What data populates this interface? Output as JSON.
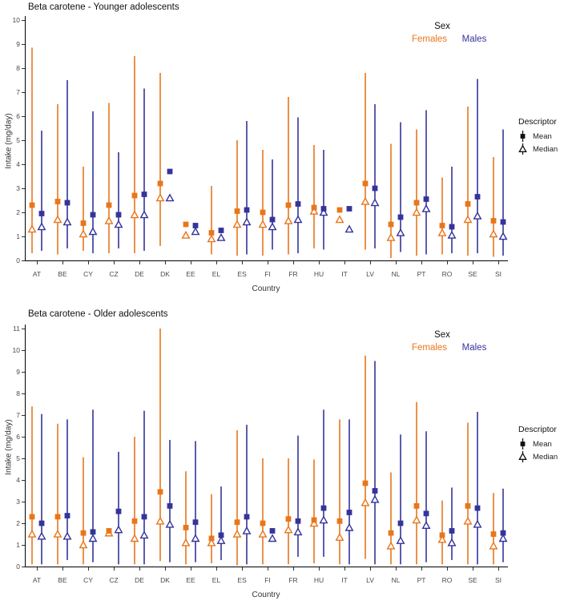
{
  "colors": {
    "females": "#E8761B",
    "males": "#34349A",
    "axis": "#000000",
    "tick_label": "#4a4a4a"
  },
  "sex_legend": {
    "title": "Sex",
    "items": [
      {
        "label": "Females",
        "key": "females"
      },
      {
        "label": "Males",
        "key": "males"
      }
    ]
  },
  "descriptor_legend": {
    "title": "Descriptor",
    "items": [
      {
        "label": "Mean",
        "shape": "filled-square"
      },
      {
        "label": "Median",
        "shape": "open-triangle"
      }
    ]
  },
  "chart_data": [
    {
      "type": "pointrange",
      "title": "Beta carotene - Younger adolescents",
      "xlabel": "Country",
      "ylabel": "Intake (mg/day)",
      "ylim": [
        0,
        10
      ],
      "yticks": [
        0,
        1,
        2,
        3,
        4,
        5,
        6,
        7,
        8,
        9,
        10
      ],
      "grid": false,
      "legend_position": "sex: top-right inside; descriptor: right margin",
      "categories": [
        "AT",
        "BE",
        "CY",
        "CZ",
        "DE",
        "DK",
        "EE",
        "EL",
        "ES",
        "FI",
        "FR",
        "HU",
        "IT",
        "LV",
        "NL",
        "PT",
        "RO",
        "SE",
        "SI"
      ],
      "series": [
        {
          "name": "Females",
          "mins": [
            0.3,
            0.25,
            0.4,
            0.3,
            0.3,
            0.6,
            null,
            0.25,
            0.2,
            0.2,
            0.25,
            0.5,
            null,
            0.45,
            0.1,
            0.2,
            0.25,
            0.2,
            0.15
          ],
          "maxs": [
            8.85,
            6.5,
            3.9,
            6.55,
            8.5,
            7.8,
            null,
            3.1,
            5.0,
            4.6,
            6.8,
            4.8,
            null,
            7.8,
            4.85,
            5.45,
            3.45,
            6.4,
            4.3
          ],
          "means": [
            2.3,
            2.45,
            1.55,
            2.3,
            2.7,
            3.2,
            1.5,
            1.15,
            2.05,
            2.0,
            2.3,
            2.2,
            2.1,
            3.2,
            1.5,
            2.4,
            1.45,
            2.35,
            1.65
          ],
          "medians": [
            1.3,
            1.7,
            1.1,
            1.65,
            1.9,
            2.6,
            1.05,
            0.9,
            1.5,
            1.5,
            1.65,
            2.05,
            1.7,
            2.45,
            0.95,
            2.0,
            1.15,
            1.7,
            1.1
          ]
        },
        {
          "name": "Males",
          "mins": [
            0.4,
            0.5,
            0.3,
            0.5,
            0.4,
            null,
            null,
            null,
            0.25,
            0.45,
            0.3,
            0.45,
            null,
            0.5,
            0.35,
            0.25,
            0.3,
            0.3,
            0.2
          ],
          "maxs": [
            5.4,
            7.5,
            6.2,
            4.5,
            7.15,
            null,
            null,
            null,
            5.8,
            4.2,
            5.95,
            4.6,
            null,
            6.5,
            5.75,
            6.25,
            3.9,
            7.55,
            5.45
          ],
          "means": [
            1.95,
            2.4,
            1.9,
            1.9,
            2.75,
            3.7,
            1.45,
            1.25,
            2.1,
            1.7,
            2.35,
            2.15,
            2.15,
            3.0,
            1.8,
            2.55,
            1.4,
            2.65,
            1.6
          ],
          "medians": [
            1.4,
            1.6,
            1.2,
            1.5,
            1.9,
            2.6,
            1.2,
            0.95,
            1.6,
            1.4,
            1.7,
            2.0,
            1.3,
            2.4,
            1.15,
            2.15,
            1.05,
            1.85,
            1.0
          ]
        }
      ]
    },
    {
      "type": "pointrange",
      "title": "Beta carotene - Older adolescents",
      "xlabel": "Country",
      "ylabel": "Intake (mg/day)",
      "ylim": [
        0,
        11
      ],
      "yticks": [
        0,
        1,
        2,
        3,
        4,
        5,
        6,
        7,
        8,
        9,
        10,
        11
      ],
      "grid": false,
      "legend_position": "sex: top-right inside; descriptor: right margin",
      "categories": [
        "AT",
        "BE",
        "CY",
        "CZ",
        "DE",
        "DK",
        "EE",
        "EL",
        "ES",
        "FI",
        "FR",
        "HU",
        "IT",
        "LV",
        "NL",
        "PT",
        "RO",
        "SE",
        "SI"
      ],
      "series": [
        {
          "name": "Females",
          "mins": [
            0.1,
            0.1,
            0.1,
            null,
            0.1,
            0.25,
            0.1,
            0.15,
            0.05,
            0.1,
            0.1,
            0.15,
            0.1,
            0.35,
            0.1,
            0.1,
            0.1,
            0.1,
            0.1
          ],
          "maxs": [
            7.4,
            6.6,
            5.05,
            null,
            6.0,
            11.0,
            4.4,
            3.35,
            6.3,
            5.0,
            5.0,
            4.95,
            6.8,
            9.75,
            4.35,
            7.6,
            3.05,
            6.65,
            3.4
          ],
          "means": [
            2.3,
            2.3,
            1.55,
            1.65,
            2.1,
            3.45,
            1.8,
            1.3,
            2.05,
            2.0,
            2.2,
            2.15,
            2.1,
            3.85,
            1.55,
            2.8,
            1.45,
            2.8,
            1.5
          ],
          "medians": [
            1.5,
            1.5,
            1.0,
            1.55,
            1.3,
            2.1,
            1.1,
            1.1,
            1.5,
            1.5,
            1.7,
            2.0,
            1.35,
            2.95,
            0.95,
            2.15,
            1.25,
            2.1,
            0.95
          ]
        },
        {
          "name": "Males",
          "mins": [
            0.1,
            0.3,
            0.2,
            0.1,
            0.1,
            0.2,
            0.2,
            0.3,
            0.1,
            null,
            0.45,
            0.45,
            0.1,
            0.1,
            0.1,
            0.2,
            0.3,
            0.1,
            0.2
          ],
          "maxs": [
            7.05,
            6.8,
            7.25,
            5.3,
            7.2,
            5.85,
            5.8,
            3.7,
            6.55,
            null,
            6.05,
            7.25,
            6.8,
            9.5,
            6.1,
            6.25,
            3.65,
            7.15,
            3.6
          ],
          "means": [
            2.0,
            2.35,
            1.6,
            2.55,
            2.3,
            2.8,
            2.05,
            1.45,
            2.3,
            1.65,
            2.1,
            2.7,
            2.5,
            3.5,
            2.0,
            2.45,
            1.65,
            2.7,
            1.55
          ],
          "medians": [
            1.4,
            1.4,
            1.3,
            1.7,
            1.45,
            1.95,
            1.3,
            1.2,
            1.65,
            1.3,
            1.6,
            2.15,
            1.8,
            3.1,
            1.2,
            1.9,
            1.1,
            1.95,
            1.3
          ]
        }
      ]
    }
  ]
}
